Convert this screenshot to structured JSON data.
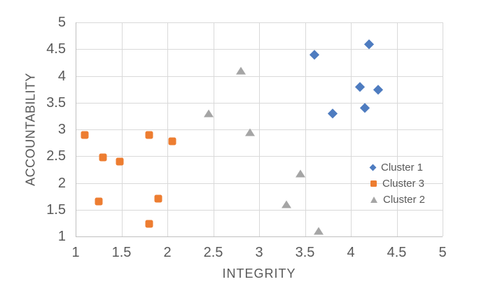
{
  "chart_data": {
    "type": "scatter",
    "title": "",
    "xlabel": "INTEGRITY",
    "ylabel": "ACCOUNTABILITY",
    "xlim": [
      1,
      5
    ],
    "ylim": [
      1,
      5
    ],
    "xticks": [
      1,
      1.5,
      2,
      2.5,
      3,
      3.5,
      4,
      4.5,
      5
    ],
    "yticks": [
      1,
      1.5,
      2,
      2.5,
      3,
      3.5,
      4,
      4.5,
      5
    ],
    "grid": true,
    "legend_position": "right-center",
    "series": [
      {
        "name": "Cluster 1",
        "marker": "diamond",
        "color": "#4e7cc0",
        "points": [
          [
            3.6,
            4.4
          ],
          [
            4.2,
            4.6
          ],
          [
            4.1,
            3.8
          ],
          [
            4.3,
            3.75
          ],
          [
            4.15,
            3.4
          ],
          [
            3.8,
            3.3
          ]
        ]
      },
      {
        "name": "Cluster 3",
        "marker": "square",
        "color": "#ed7d31",
        "points": [
          [
            1.1,
            2.9
          ],
          [
            1.8,
            2.9
          ],
          [
            2.05,
            2.78
          ],
          [
            1.3,
            2.48
          ],
          [
            1.48,
            2.4
          ],
          [
            1.25,
            1.65
          ],
          [
            1.9,
            1.7
          ],
          [
            1.8,
            1.23
          ]
        ]
      },
      {
        "name": "Cluster 2",
        "marker": "triangle",
        "color": "#a5a5a5",
        "points": [
          [
            2.8,
            4.1
          ],
          [
            2.45,
            3.3
          ],
          [
            2.9,
            2.95
          ],
          [
            3.45,
            2.17
          ],
          [
            3.3,
            1.6
          ],
          [
            3.65,
            1.1
          ]
        ]
      }
    ],
    "styles": {
      "gridline_color": "#d9d9d9",
      "axis_line_color": "#bfbfbf",
      "text_color": "#595959",
      "background": "#ffffff"
    }
  }
}
